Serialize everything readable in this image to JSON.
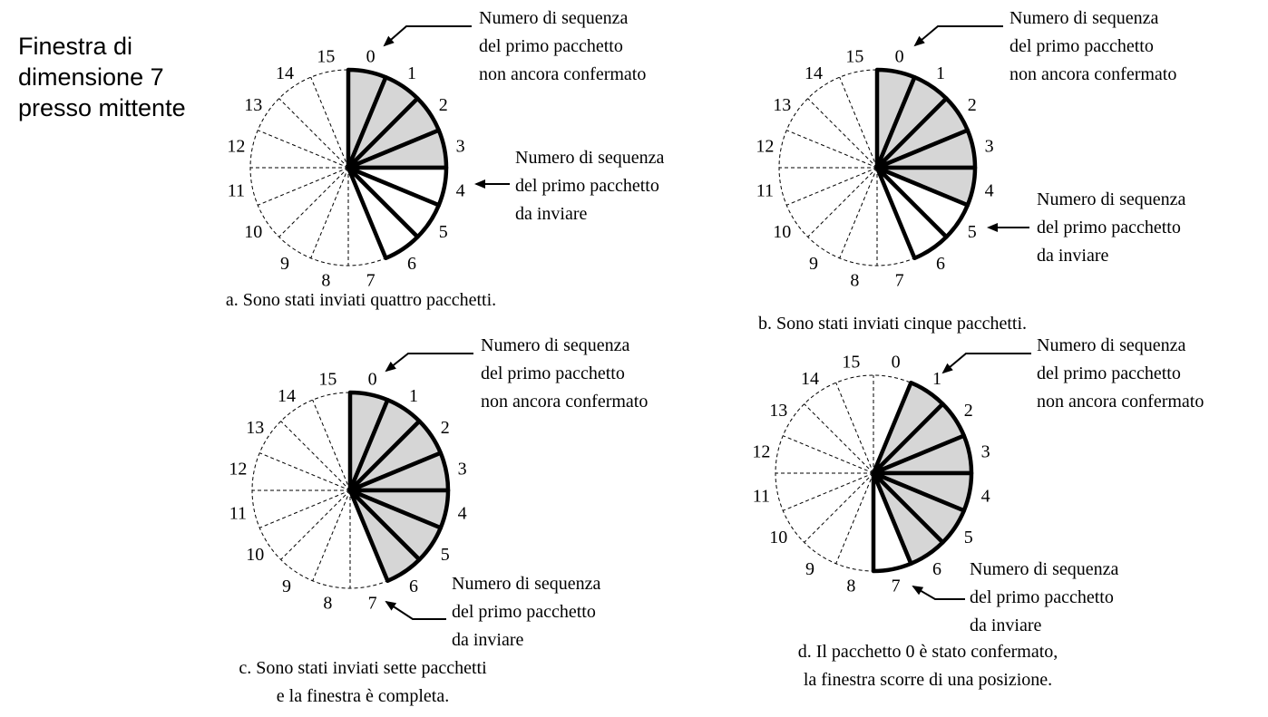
{
  "title_lines": [
    "Finestra di",
    "dimensione 7",
    "presso mittente"
  ],
  "sequence_numbers": [
    "0",
    "1",
    "2",
    "3",
    "4",
    "5",
    "6",
    "7",
    "8",
    "9",
    "10",
    "11",
    "12",
    "13",
    "14",
    "15"
  ],
  "window_size": 7,
  "panels": [
    {
      "id": "a",
      "window_start": 0,
      "sent": 4,
      "caption": [
        "a. Sono stati inviati quattro pacchetti."
      ],
      "top_label": [
        "Numero di sequenza",
        "del primo pacchetto",
        "non ancora confermato"
      ],
      "bottom_label": [
        "Numero di sequenza",
        "del primo pacchetto",
        "da inviare"
      ]
    },
    {
      "id": "b",
      "window_start": 0,
      "sent": 5,
      "caption": [
        "b. Sono stati inviati cinque pacchetti."
      ],
      "top_label": [
        "Numero di sequenza",
        "del primo pacchetto",
        "non ancora confermato"
      ],
      "bottom_label": [
        "Numero di sequenza",
        "del primo pacchetto",
        "da inviare"
      ]
    },
    {
      "id": "c",
      "window_start": 0,
      "sent": 7,
      "caption": [
        "c. Sono stati inviati sette pacchetti",
        "e la finestra è completa."
      ],
      "top_label": [
        "Numero di sequenza",
        "del primo pacchetto",
        "non ancora confermato"
      ],
      "bottom_label": [
        "Numero di sequenza",
        "del primo pacchetto",
        "da inviare"
      ]
    },
    {
      "id": "d",
      "window_start": 1,
      "sent": 6,
      "caption": [
        "d. Il pacchetto 0 è stato confermato,",
        "la finestra scorre di una posizione."
      ],
      "top_label": [
        "Numero di sequenza",
        "del primo pacchetto",
        "non ancora confermato"
      ],
      "bottom_label": [
        "Numero di sequenza",
        "del primo pacchetto",
        "da inviare"
      ]
    }
  ]
}
